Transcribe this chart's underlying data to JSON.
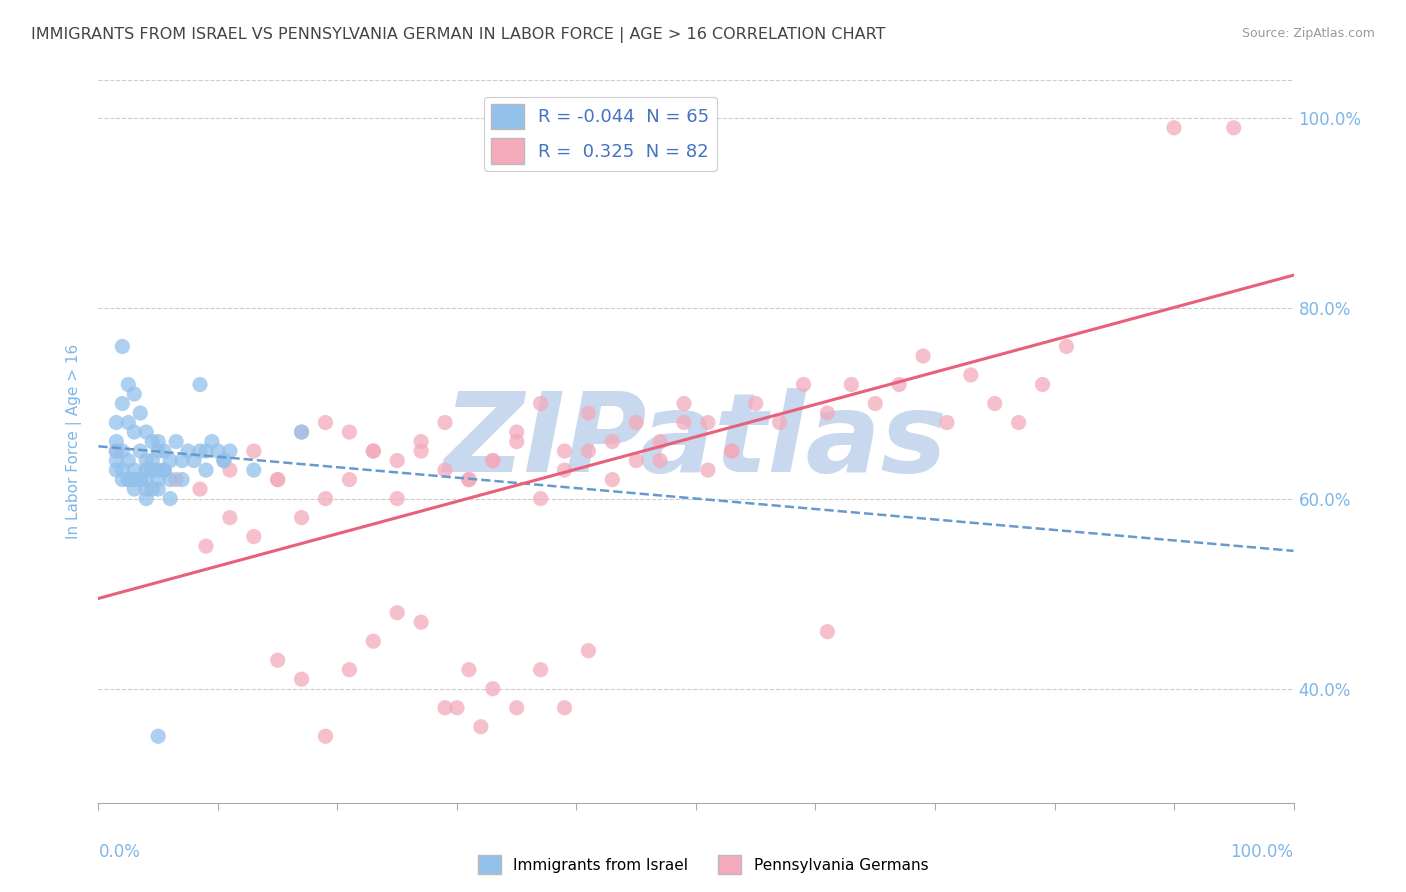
{
  "title": "IMMIGRANTS FROM ISRAEL VS PENNSYLVANIA GERMAN IN LABOR FORCE | AGE > 16 CORRELATION CHART",
  "source": "Source: ZipAtlas.com",
  "ylabel": "In Labor Force | Age > 16",
  "y_ticks": [
    0.4,
    0.6,
    0.8,
    1.0
  ],
  "y_tick_labels": [
    "40.0%",
    "60.0%",
    "80.0%",
    "100.0%"
  ],
  "xlim": [
    0.0,
    1.0
  ],
  "ylim": [
    0.28,
    1.04
  ],
  "legend_blue_label": "Immigrants from Israel",
  "legend_pink_label": "Pennsylvania Germans",
  "R_blue": -0.044,
  "N_blue": 65,
  "R_pink": 0.325,
  "N_pink": 82,
  "blue_color": "#92C1EB",
  "pink_color": "#F4AABB",
  "blue_line_color": "#6699CC",
  "pink_line_color": "#E8607A",
  "title_color": "#444444",
  "axis_color": "#7EB6E8",
  "watermark_color": "#C8D8EE",
  "watermark_text": "ZIPatlas",
  "blue_line_x0": 0.0,
  "blue_line_x1": 1.0,
  "blue_line_y0": 0.655,
  "blue_line_y1": 0.545,
  "pink_line_x0": 0.0,
  "pink_line_x1": 1.0,
  "pink_line_y0": 0.495,
  "pink_line_y1": 0.835,
  "blue_scatter_x": [
    0.015,
    0.02,
    0.025,
    0.03,
    0.035,
    0.04,
    0.045,
    0.05,
    0.055,
    0.06,
    0.065,
    0.07,
    0.075,
    0.08,
    0.085,
    0.09,
    0.095,
    0.1,
    0.105,
    0.11,
    0.015,
    0.02,
    0.025,
    0.03,
    0.035,
    0.04,
    0.045,
    0.05,
    0.055,
    0.06,
    0.015,
    0.02,
    0.025,
    0.03,
    0.035,
    0.04,
    0.045,
    0.05,
    0.055,
    0.015,
    0.02,
    0.025,
    0.03,
    0.035,
    0.04,
    0.045,
    0.05,
    0.015,
    0.02,
    0.025,
    0.03,
    0.035,
    0.04,
    0.045,
    0.03,
    0.04,
    0.05,
    0.06,
    0.07,
    0.13,
    0.17,
    0.05,
    0.085,
    0.105,
    0.09
  ],
  "blue_scatter_y": [
    0.68,
    0.76,
    0.72,
    0.71,
    0.69,
    0.67,
    0.66,
    0.65,
    0.65,
    0.64,
    0.66,
    0.64,
    0.65,
    0.64,
    0.65,
    0.65,
    0.66,
    0.65,
    0.64,
    0.65,
    0.66,
    0.7,
    0.68,
    0.67,
    0.65,
    0.64,
    0.63,
    0.63,
    0.63,
    0.62,
    0.65,
    0.65,
    0.64,
    0.63,
    0.62,
    0.62,
    0.63,
    0.62,
    0.63,
    0.64,
    0.63,
    0.62,
    0.62,
    0.62,
    0.63,
    0.64,
    0.66,
    0.63,
    0.62,
    0.62,
    0.61,
    0.62,
    0.6,
    0.61,
    0.62,
    0.61,
    0.61,
    0.6,
    0.62,
    0.63,
    0.67,
    0.35,
    0.72,
    0.64,
    0.63
  ],
  "pink_scatter_x": [
    0.015,
    0.04,
    0.065,
    0.085,
    0.11,
    0.13,
    0.15,
    0.17,
    0.19,
    0.21,
    0.23,
    0.25,
    0.27,
    0.29,
    0.31,
    0.33,
    0.35,
    0.37,
    0.39,
    0.41,
    0.43,
    0.45,
    0.47,
    0.49,
    0.51,
    0.53,
    0.55,
    0.57,
    0.59,
    0.61,
    0.63,
    0.65,
    0.67,
    0.69,
    0.71,
    0.73,
    0.75,
    0.77,
    0.79,
    0.81,
    0.09,
    0.11,
    0.13,
    0.15,
    0.17,
    0.19,
    0.21,
    0.23,
    0.25,
    0.27,
    0.29,
    0.31,
    0.33,
    0.35,
    0.37,
    0.39,
    0.41,
    0.43,
    0.45,
    0.47,
    0.49,
    0.9,
    0.95,
    0.3,
    0.32,
    0.15,
    0.17,
    0.19,
    0.21,
    0.23,
    0.25,
    0.27,
    0.29,
    0.31,
    0.33,
    0.35,
    0.37,
    0.39,
    0.41,
    0.61,
    0.51,
    0.53
  ],
  "pink_scatter_y": [
    0.65,
    0.63,
    0.62,
    0.61,
    0.63,
    0.65,
    0.62,
    0.67,
    0.68,
    0.67,
    0.65,
    0.64,
    0.66,
    0.68,
    0.62,
    0.64,
    0.67,
    0.7,
    0.65,
    0.69,
    0.66,
    0.68,
    0.64,
    0.7,
    0.68,
    0.65,
    0.7,
    0.68,
    0.72,
    0.69,
    0.72,
    0.7,
    0.72,
    0.75,
    0.68,
    0.73,
    0.7,
    0.68,
    0.72,
    0.76,
    0.55,
    0.58,
    0.56,
    0.62,
    0.58,
    0.6,
    0.62,
    0.65,
    0.6,
    0.65,
    0.63,
    0.62,
    0.64,
    0.66,
    0.6,
    0.63,
    0.65,
    0.62,
    0.64,
    0.66,
    0.68,
    0.99,
    0.99,
    0.38,
    0.36,
    0.43,
    0.41,
    0.35,
    0.42,
    0.45,
    0.48,
    0.47,
    0.38,
    0.42,
    0.4,
    0.38,
    0.42,
    0.38,
    0.44,
    0.46,
    0.63,
    0.65
  ]
}
